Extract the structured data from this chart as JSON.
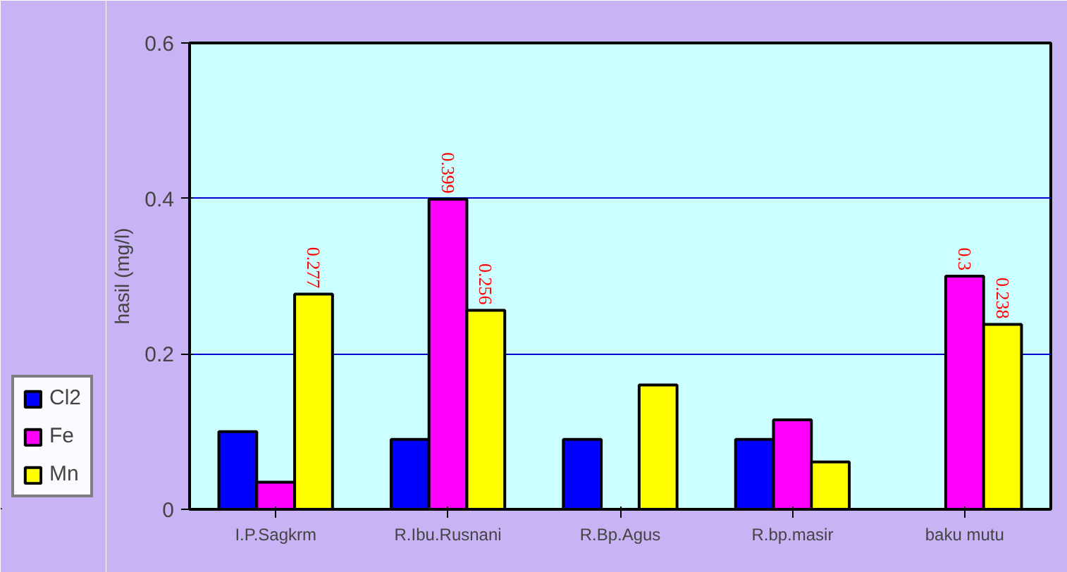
{
  "chart_data": {
    "type": "bar",
    "ylabel": "hasil (mg/l)",
    "categories": [
      "I.P.Sagkrm",
      "R.Ibu.Rusnani",
      "R.Bp.Agus",
      "R.bp.masir",
      "baku mutu"
    ],
    "series": [
      {
        "name": "Cl2",
        "color": "#0000ff",
        "values": [
          0.1,
          0.09,
          0.09,
          0.09,
          null
        ],
        "value_labels": [
          null,
          null,
          null,
          null,
          null
        ]
      },
      {
        "name": "Fe",
        "color": "#ff00ff",
        "values": [
          0.035,
          0.399,
          null,
          0.115,
          0.3
        ],
        "value_labels": [
          null,
          "0.399",
          null,
          null,
          "0.3"
        ]
      },
      {
        "name": "Mn",
        "color": "#ffff00",
        "values": [
          0.277,
          0.256,
          0.16,
          0.061,
          0.238
        ],
        "value_labels": [
          "0.277",
          "0.256",
          null,
          null,
          "0.238"
        ]
      }
    ],
    "ylim": [
      0,
      0.6
    ],
    "yticks": [
      0,
      0.2,
      0.4,
      0.6
    ],
    "grid": "y",
    "legend": "bottom left"
  }
}
